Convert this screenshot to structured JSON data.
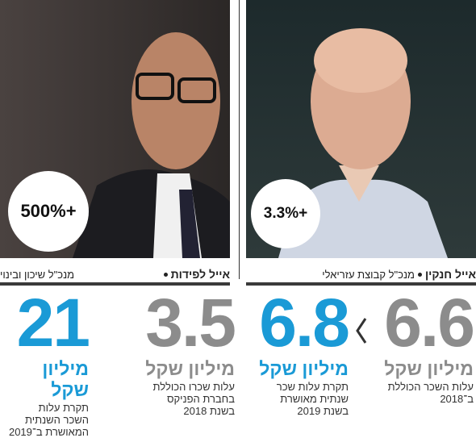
{
  "panels": [
    {
      "name": "אייל חנקין",
      "role": "מנכ\"ל קבוצת עזריאלי",
      "badge": "+3.3%",
      "before": {
        "number": "6.6",
        "unit": "מיליון שקל",
        "lines": [
          "עלות השכר הכוללת",
          "ב־2018"
        ]
      },
      "after": {
        "number": "6.8",
        "unit": "מיליון שקל",
        "lines": [
          "תקרת עלות שכר",
          "שנתית מאושרת",
          "בשנת 2019"
        ]
      }
    },
    {
      "name": "אייל לפידות",
      "role": "מנכ\"ל שיכון ובינוי",
      "badge": "+500%",
      "before": {
        "number": "3.5",
        "unit": "מיליון שקל",
        "lines": [
          "עלות שכרו הכוללת",
          "בחברת הפניקס",
          "בשנת 2018"
        ]
      },
      "after": {
        "number": "21",
        "unit": "מיליון שקל",
        "lines": [
          "תקרת עלות",
          "השכר השנתית",
          "המאושרת ב־2019"
        ]
      }
    }
  ]
}
